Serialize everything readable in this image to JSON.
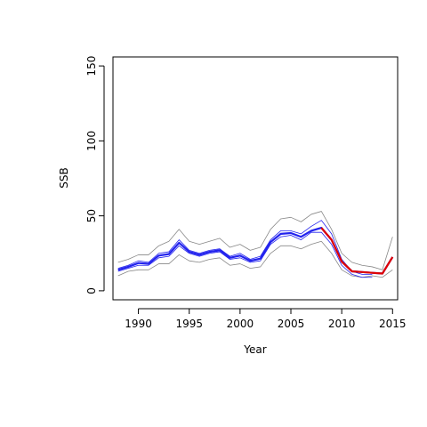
{
  "chart_data": {
    "type": "line",
    "title": "",
    "xlabel": "Year",
    "ylabel": "SSB",
    "xlim": [
      1987.5,
      2015.5
    ],
    "ylim": [
      -6,
      156
    ],
    "x_ticks": [
      1990,
      1995,
      2000,
      2005,
      2010,
      2015
    ],
    "y_ticks": [
      0,
      50,
      100,
      150
    ],
    "grid": false,
    "legend": "none",
    "series": [
      {
        "role": "upper-bound",
        "color": "#888888",
        "x": [
          1988,
          1989,
          1990,
          1991,
          1992,
          1993,
          1994,
          1995,
          1996,
          1997,
          1998,
          1999,
          2000,
          2001,
          2002,
          2003,
          2004,
          2005,
          2006,
          2007,
          2008,
          2009,
          2010,
          2011,
          2012,
          2013,
          2014,
          2015
        ],
        "values": [
          19,
          21,
          24,
          24,
          30,
          33,
          41,
          33,
          31,
          33,
          35,
          29,
          31,
          27,
          29,
          41,
          48,
          49,
          46,
          51,
          53,
          41,
          25,
          19,
          17,
          16,
          14,
          36
        ]
      },
      {
        "role": "lower-bound",
        "color": "#888888",
        "x": [
          1988,
          1989,
          1990,
          1991,
          1992,
          1993,
          1994,
          1995,
          1996,
          1997,
          1998,
          1999,
          2000,
          2001,
          2002,
          2003,
          2004,
          2005,
          2006,
          2007,
          2008,
          2009,
          2010,
          2011,
          2012,
          2013,
          2014,
          2015
        ],
        "values": [
          10,
          13,
          14,
          14,
          18,
          18,
          24,
          20,
          19,
          21,
          22,
          17,
          18,
          15,
          16,
          25,
          30,
          30,
          28,
          31,
          33,
          25,
          14,
          10,
          9,
          10,
          9,
          14
        ]
      },
      {
        "role": "blue-upper",
        "color": "#2222ee",
        "x": [
          1988,
          1989,
          1990,
          1991,
          1992,
          1993,
          1994,
          1995,
          1996,
          1997,
          1998,
          1999,
          2000,
          2001,
          2002,
          2003,
          2004,
          2005,
          2006,
          2007,
          2008,
          2009,
          2010,
          2011,
          2012,
          2013
        ],
        "values": [
          15,
          17,
          20,
          19,
          25,
          26,
          34,
          27,
          25,
          27,
          28,
          23,
          25,
          21,
          23,
          34,
          40,
          40,
          38,
          43,
          47,
          38,
          21,
          13,
          11,
          11
        ]
      },
      {
        "role": "blue-lower",
        "color": "#2222ee",
        "x": [
          1988,
          1989,
          1990,
          1991,
          1992,
          1993,
          1994,
          1995,
          1996,
          1997,
          1998,
          1999,
          2000,
          2001,
          2002,
          2003,
          2004,
          2005,
          2006,
          2007,
          2008,
          2009,
          2010,
          2011,
          2012,
          2013
        ],
        "values": [
          13,
          15,
          17,
          17,
          22,
          23,
          30,
          25,
          23,
          25,
          26,
          21,
          22,
          19,
          20,
          31,
          36,
          37,
          34,
          39,
          39,
          31,
          17,
          11,
          9,
          9
        ]
      },
      {
        "role": "estimate",
        "color": "#2222ee",
        "x": [
          1988,
          1989,
          1990,
          1991,
          1992,
          1993,
          1994,
          1995,
          1996,
          1997,
          1998,
          1999,
          2000,
          2001,
          2002,
          2003,
          2004,
          2005,
          2006,
          2007,
          2008,
          2009,
          2010,
          2011,
          2012,
          2013,
          2014,
          2015
        ],
        "values": [
          14,
          16,
          18.5,
          18,
          23.5,
          24.5,
          32,
          26,
          24,
          26,
          27,
          22,
          23.5,
          20,
          21.5,
          32.5,
          38,
          38.5,
          36,
          40,
          42,
          34,
          19.5,
          13,
          12.5,
          12,
          11.5,
          22.5
        ]
      },
      {
        "role": "estimate-recent",
        "color": "#e00000",
        "x": [
          2008,
          2009,
          2010,
          2011,
          2012,
          2013,
          2014,
          2015
        ],
        "values": [
          42,
          34,
          19.5,
          13,
          12.5,
          12,
          11.5,
          22.5
        ]
      }
    ]
  }
}
